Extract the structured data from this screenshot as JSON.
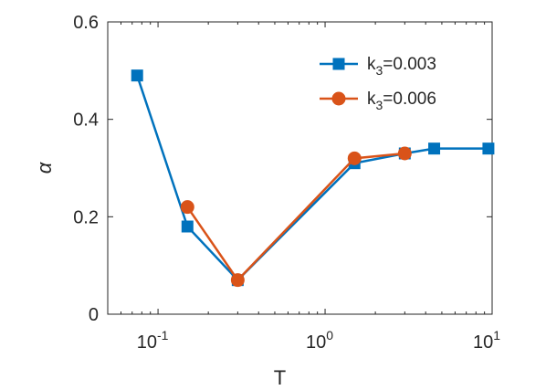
{
  "chart_data": {
    "type": "line",
    "xscale": "log",
    "xlabel": "T",
    "ylabel": "α",
    "xlim": [
      0.05,
      10
    ],
    "ylim": [
      0,
      0.6
    ],
    "grid": false,
    "legend_position": "top-right",
    "x_ticks": [
      {
        "value": 0.1,
        "base": "10",
        "exp": "-1"
      },
      {
        "value": 1,
        "base": "10",
        "exp": "0"
      },
      {
        "value": 10,
        "base": "10",
        "exp": "1"
      }
    ],
    "y_ticks": [
      {
        "value": 0,
        "label": "0"
      },
      {
        "value": 0.2,
        "label": "0.2"
      },
      {
        "value": 0.4,
        "label": "0.4"
      },
      {
        "value": 0.6,
        "label": "0.6"
      }
    ],
    "series": [
      {
        "label_prefix": "k",
        "label_sub": "3",
        "label_suffix": "=0.003",
        "color": "#0072BD",
        "marker": "square",
        "x": [
          0.075,
          0.15,
          0.3,
          1.5,
          3,
          4.5,
          9.5
        ],
        "y": [
          0.49,
          0.18,
          0.07,
          0.31,
          0.33,
          0.34,
          0.34
        ]
      },
      {
        "label_prefix": "k",
        "label_sub": "3",
        "label_suffix": "=0.006",
        "color": "#D95319",
        "marker": "circle",
        "x": [
          0.15,
          0.3,
          1.5,
          3
        ],
        "y": [
          0.22,
          0.07,
          0.32,
          0.33
        ]
      }
    ]
  }
}
